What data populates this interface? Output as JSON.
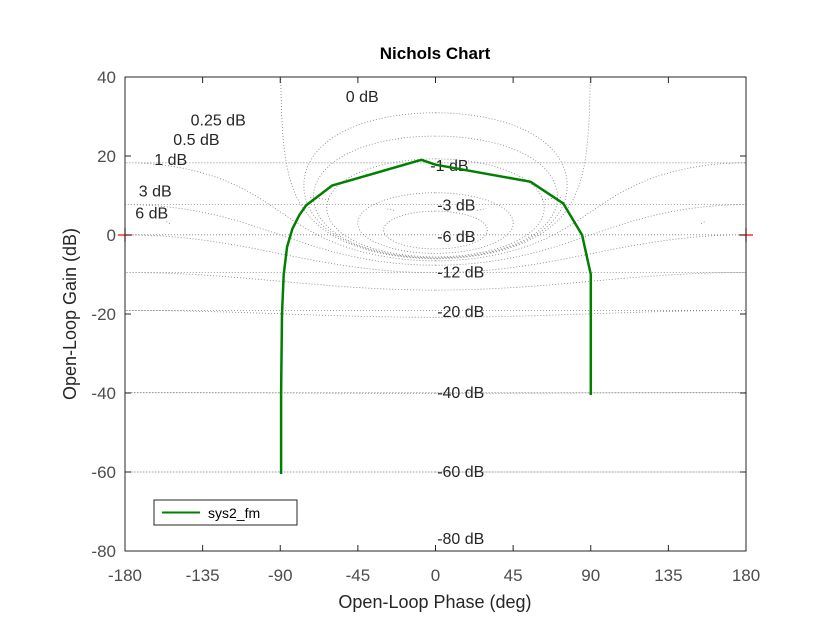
{
  "chart_data": {
    "type": "line",
    "title": "Nichols Chart",
    "xlabel": "Open-Loop Phase (deg)",
    "ylabel": "Open-Loop Gain (dB)",
    "xlim": [
      -180,
      180
    ],
    "ylim": [
      -80,
      40
    ],
    "xticks": [
      -180,
      -135,
      -90,
      -45,
      0,
      45,
      90,
      135,
      180
    ],
    "yticks": [
      40,
      20,
      0,
      -20,
      -40,
      -60,
      -80
    ],
    "x_tick_labels": [
      "-180",
      "-135",
      "-90",
      "-45",
      "0",
      "45",
      "90",
      "135",
      "180"
    ],
    "y_tick_labels": [
      "40",
      "20",
      "0",
      "-20",
      "-40",
      "-60",
      "-80"
    ],
    "grid": true,
    "legend_position": "bottom-left",
    "critical_points": [
      [
        -180,
        0
      ],
      [
        180,
        0
      ]
    ],
    "critical_point_color": "#ff0000",
    "gridline_labels": [
      {
        "text": "0 dB",
        "phase": -52,
        "gain": 35
      },
      {
        "text": "0.25 dB",
        "phase": -142,
        "gain": 29
      },
      {
        "text": "0.5 dB",
        "phase": -152,
        "gain": 24
      },
      {
        "text": "1 dB",
        "phase": -163,
        "gain": 19
      },
      {
        "text": "3 dB",
        "phase": -172,
        "gain": 11
      },
      {
        "text": "6 dB",
        "phase": -174,
        "gain": 5.5
      },
      {
        "text": "-1 dB",
        "phase": -3,
        "gain": 17.5
      },
      {
        "text": "-3 dB",
        "phase": 1,
        "gain": 7.5
      },
      {
        "text": "-6 dB",
        "phase": 1,
        "gain": -0.5
      },
      {
        "text": "-12 dB",
        "phase": 1,
        "gain": -9.5
      },
      {
        "text": "-20 dB",
        "phase": 1,
        "gain": -19.5
      },
      {
        "text": "-40 dB",
        "phase": 1,
        "gain": -40
      },
      {
        "text": "-60 dB",
        "phase": 1,
        "gain": -60
      },
      {
        "text": "-80 dB",
        "phase": 1,
        "gain": -77
      }
    ],
    "series": [
      {
        "name": "sys2_fm",
        "color": "#007f00",
        "x": [
          -89.5,
          -89.5,
          -89,
          -88,
          -86,
          -83,
          -79,
          -75,
          -60,
          -10,
          -8,
          0,
          55,
          74,
          85,
          90,
          90
        ],
        "y": [
          -60.5,
          -40,
          -20,
          -10,
          -3,
          1.5,
          5,
          7.5,
          12.5,
          18.8,
          19,
          17.8,
          13.5,
          8,
          0,
          -10,
          -40.5
        ]
      }
    ]
  }
}
